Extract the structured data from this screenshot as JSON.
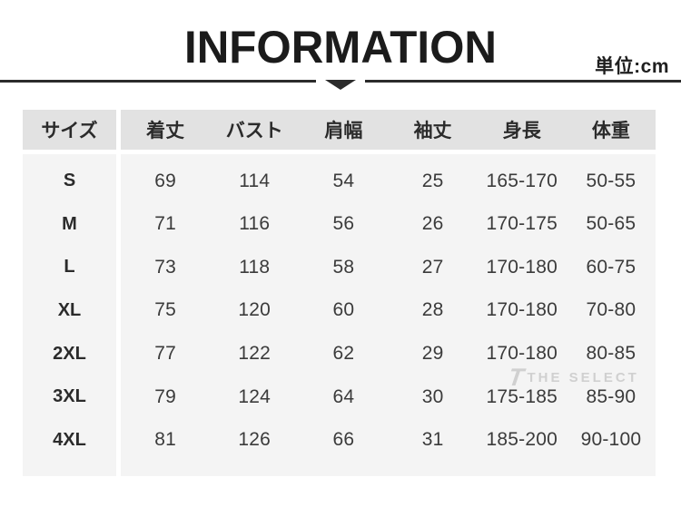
{
  "header": {
    "title": "INFORMATION",
    "unit_label": "単位:cm"
  },
  "chart_data": {
    "type": "table",
    "title": "INFORMATION",
    "unit": "cm",
    "columns": [
      "サイズ",
      "着丈",
      "バスト",
      "肩幅",
      "袖丈",
      "身長",
      "体重"
    ],
    "rows": [
      {
        "size": "S",
        "values": [
          "69",
          "114",
          "54",
          "25",
          "165-170",
          "50-55"
        ]
      },
      {
        "size": "M",
        "values": [
          "71",
          "116",
          "56",
          "26",
          "170-175",
          "50-65"
        ]
      },
      {
        "size": "L",
        "values": [
          "73",
          "118",
          "58",
          "27",
          "170-180",
          "60-75"
        ]
      },
      {
        "size": "XL",
        "values": [
          "75",
          "120",
          "60",
          "28",
          "170-180",
          "70-80"
        ]
      },
      {
        "size": "2XL",
        "values": [
          "77",
          "122",
          "62",
          "29",
          "170-180",
          "80-85"
        ]
      },
      {
        "size": "3XL",
        "values": [
          "79",
          "124",
          "64",
          "30",
          "175-185",
          "85-90"
        ]
      },
      {
        "size": "4XL",
        "values": [
          "81",
          "126",
          "66",
          "31",
          "185-200",
          "90-100"
        ]
      }
    ]
  },
  "watermark": {
    "logo": "T",
    "text": "THE SELECT"
  },
  "colors": {
    "header_bg": "#e2e2e2",
    "body_bg": "#f4f4f4",
    "rule_dark": "#2b2b2b",
    "title_text": "#1b1b1b",
    "value_text": "#3b3b3b",
    "watermark_gray": "#c4c4c4"
  }
}
